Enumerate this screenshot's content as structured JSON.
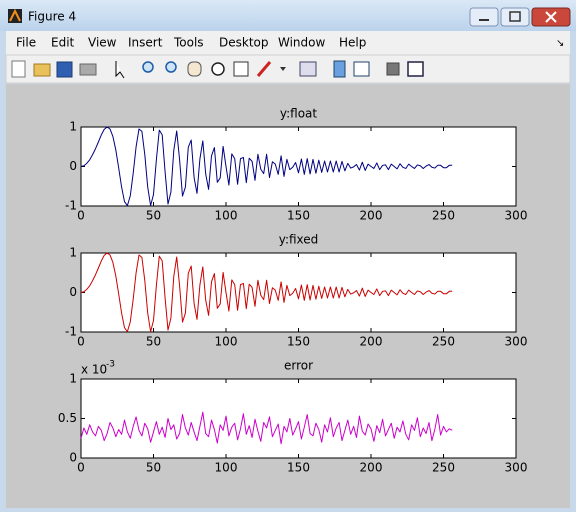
{
  "window": {
    "title": "Figure 4",
    "menu": [
      "File",
      "Edit",
      "View",
      "Insert",
      "Tools",
      "Desktop",
      "Window",
      "Help"
    ]
  },
  "chart_data": [
    {
      "type": "line",
      "title": "y:float",
      "color": "#000080",
      "x": [
        0,
        2,
        4,
        6,
        8,
        10,
        12,
        14,
        16,
        18,
        20,
        22,
        24,
        26,
        28,
        30,
        32,
        34,
        36,
        38,
        40,
        42,
        44,
        46,
        48,
        50,
        52,
        54,
        56,
        58,
        60,
        62,
        64,
        66,
        68,
        70,
        72,
        74,
        76,
        78,
        80,
        82,
        84,
        86,
        88,
        90,
        92,
        94,
        96,
        98,
        100,
        102,
        104,
        106,
        108,
        110,
        112,
        114,
        116,
        118,
        120,
        122,
        124,
        126,
        128,
        130,
        132,
        134,
        136,
        138,
        140,
        142,
        144,
        146,
        148,
        150,
        152,
        154,
        156,
        158,
        160,
        162,
        164,
        166,
        168,
        170,
        172,
        174,
        176,
        178,
        180,
        182,
        184,
        186,
        188,
        190,
        192,
        194,
        196,
        198,
        200,
        202,
        204,
        206,
        208,
        210,
        212,
        214,
        216,
        218,
        220,
        222,
        224,
        226,
        228,
        230,
        232,
        234,
        236,
        238,
        240,
        242,
        244,
        246,
        248,
        250,
        252,
        254,
        256
      ],
      "values": [
        0,
        0.02,
        0.08,
        0.17,
        0.3,
        0.45,
        0.62,
        0.8,
        0.94,
        1,
        0.95,
        0.76,
        0.42,
        -0.04,
        -0.52,
        -0.89,
        -0.99,
        -0.74,
        -0.17,
        0.5,
        0.95,
        0.89,
        0.3,
        -0.52,
        -0.99,
        -0.71,
        0.18,
        0.92,
        0.8,
        -0.14,
        -0.95,
        -0.65,
        0.41,
        0.9,
        0.17,
        -0.75,
        -0.52,
        0.49,
        0.67,
        -0.28,
        -0.68,
        0.19,
        0.65,
        -0.19,
        -0.58,
        0.27,
        0.48,
        -0.4,
        -0.29,
        0.51,
        0,
        -0.47,
        0.32,
        0.2,
        -0.45,
        0.2,
        0.23,
        -0.41,
        0.21,
        0.13,
        -0.35,
        0.31,
        -0.07,
        -0.18,
        0.31,
        -0.28,
        0.12,
        0.06,
        -0.2,
        0.27,
        -0.25,
        0.18,
        -0.08,
        -0.02,
        0.1,
        -0.16,
        0.19,
        -0.2,
        0.2,
        -0.19,
        0.18,
        -0.17,
        0.16,
        -0.15,
        0.14,
        -0.14,
        0.14,
        -0.14,
        0.14,
        -0.14,
        0.13,
        -0.11,
        0.08,
        -0.04,
        -0.01,
        0.05,
        -0.09,
        0.11,
        -0.1,
        0.06,
        0,
        -0.05,
        0.09,
        -0.08,
        0.03,
        0.04,
        -0.08,
        0.06,
        0,
        -0.06,
        0.07,
        -0.02,
        -0.05,
        0.06,
        0,
        -0.05,
        0.04,
        0.02,
        -0.05,
        0.01,
        0.05,
        -0.02,
        -0.04,
        0.03,
        0.03,
        -0.03,
        -0.03,
        0.03,
        0.03
      ],
      "xlim": [
        0,
        300
      ],
      "xticks": [
        0,
        50,
        100,
        150,
        200,
        250,
        300
      ],
      "ylim": [
        -1,
        1
      ],
      "yticks": [
        -1,
        0,
        1
      ]
    },
    {
      "type": "line",
      "title": "y:fixed",
      "color": "#cc0000",
      "x": [
        0,
        2,
        4,
        6,
        8,
        10,
        12,
        14,
        16,
        18,
        20,
        22,
        24,
        26,
        28,
        30,
        32,
        34,
        36,
        38,
        40,
        42,
        44,
        46,
        48,
        50,
        52,
        54,
        56,
        58,
        60,
        62,
        64,
        66,
        68,
        70,
        72,
        74,
        76,
        78,
        80,
        82,
        84,
        86,
        88,
        90,
        92,
        94,
        96,
        98,
        100,
        102,
        104,
        106,
        108,
        110,
        112,
        114,
        116,
        118,
        120,
        122,
        124,
        126,
        128,
        130,
        132,
        134,
        136,
        138,
        140,
        142,
        144,
        146,
        148,
        150,
        152,
        154,
        156,
        158,
        160,
        162,
        164,
        166,
        168,
        170,
        172,
        174,
        176,
        178,
        180,
        182,
        184,
        186,
        188,
        190,
        192,
        194,
        196,
        198,
        200,
        202,
        204,
        206,
        208,
        210,
        212,
        214,
        216,
        218,
        220,
        222,
        224,
        226,
        228,
        230,
        232,
        234,
        236,
        238,
        240,
        242,
        244,
        246,
        248,
        250,
        252,
        254,
        256
      ],
      "values": [
        0,
        0.02,
        0.08,
        0.17,
        0.3,
        0.45,
        0.62,
        0.8,
        0.94,
        1,
        0.95,
        0.76,
        0.42,
        -0.04,
        -0.52,
        -0.89,
        -0.99,
        -0.74,
        -0.17,
        0.5,
        0.95,
        0.89,
        0.3,
        -0.52,
        -0.99,
        -0.71,
        0.18,
        0.92,
        0.8,
        -0.14,
        -0.95,
        -0.65,
        0.41,
        0.9,
        0.17,
        -0.75,
        -0.52,
        0.49,
        0.67,
        -0.28,
        -0.68,
        0.19,
        0.65,
        -0.19,
        -0.58,
        0.27,
        0.48,
        -0.4,
        -0.29,
        0.51,
        0,
        -0.47,
        0.32,
        0.2,
        -0.45,
        0.2,
        0.23,
        -0.41,
        0.21,
        0.13,
        -0.35,
        0.31,
        -0.07,
        -0.18,
        0.31,
        -0.28,
        0.12,
        0.06,
        -0.2,
        0.27,
        -0.25,
        0.18,
        -0.08,
        -0.02,
        0.1,
        -0.16,
        0.19,
        -0.2,
        0.2,
        -0.19,
        0.18,
        -0.17,
        0.16,
        -0.15,
        0.14,
        -0.14,
        0.14,
        -0.14,
        0.14,
        -0.14,
        0.13,
        -0.11,
        0.08,
        -0.04,
        -0.01,
        0.05,
        -0.09,
        0.11,
        -0.1,
        0.06,
        0,
        -0.05,
        0.09,
        -0.08,
        0.03,
        0.04,
        -0.08,
        0.06,
        0,
        -0.06,
        0.07,
        -0.02,
        -0.05,
        0.06,
        0,
        -0.05,
        0.04,
        0.02,
        -0.05,
        0.01,
        0.05,
        -0.02,
        -0.04,
        0.03,
        0.03,
        -0.03,
        -0.03,
        0.03,
        0.03
      ],
      "xlim": [
        0,
        300
      ],
      "xticks": [
        0,
        50,
        100,
        150,
        200,
        250,
        300
      ],
      "ylim": [
        -1,
        1
      ],
      "yticks": [
        -1,
        0,
        1
      ]
    },
    {
      "type": "line",
      "title": "error",
      "color": "#cc00cc",
      "y_multiplier": "x 10",
      "y_multiplier_exponent": "-3",
      "x": [
        0,
        2,
        4,
        6,
        8,
        10,
        12,
        14,
        16,
        18,
        20,
        22,
        24,
        26,
        28,
        30,
        32,
        34,
        36,
        38,
        40,
        42,
        44,
        46,
        48,
        50,
        52,
        54,
        56,
        58,
        60,
        62,
        64,
        66,
        68,
        70,
        72,
        74,
        76,
        78,
        80,
        82,
        84,
        86,
        88,
        90,
        92,
        94,
        96,
        98,
        100,
        102,
        104,
        106,
        108,
        110,
        112,
        114,
        116,
        118,
        120,
        122,
        124,
        126,
        128,
        130,
        132,
        134,
        136,
        138,
        140,
        142,
        144,
        146,
        148,
        150,
        152,
        154,
        156,
        158,
        160,
        162,
        164,
        166,
        168,
        170,
        172,
        174,
        176,
        178,
        180,
        182,
        184,
        186,
        188,
        190,
        192,
        194,
        196,
        198,
        200,
        202,
        204,
        206,
        208,
        210,
        212,
        214,
        216,
        218,
        220,
        222,
        224,
        226,
        228,
        230,
        232,
        234,
        236,
        238,
        240,
        242,
        244,
        246,
        248,
        250,
        252,
        254,
        256
      ],
      "values": [
        0.25,
        0.38,
        0.3,
        0.42,
        0.33,
        0.28,
        0.4,
        0.35,
        0.22,
        0.31,
        0.45,
        0.38,
        0.27,
        0.36,
        0.3,
        0.48,
        0.33,
        0.25,
        0.4,
        0.52,
        0.35,
        0.28,
        0.44,
        0.37,
        0.2,
        0.33,
        0.46,
        0.3,
        0.39,
        0.26,
        0.5,
        0.36,
        0.42,
        0.24,
        0.31,
        0.55,
        0.38,
        0.29,
        0.45,
        0.33,
        0.22,
        0.4,
        0.58,
        0.31,
        0.27,
        0.48,
        0.36,
        0.19,
        0.42,
        0.35,
        0.53,
        0.28,
        0.39,
        0.44,
        0.23,
        0.37,
        0.56,
        0.3,
        0.41,
        0.26,
        0.49,
        0.34,
        0.21,
        0.45,
        0.38,
        0.52,
        0.27,
        0.35,
        0.43,
        0.18,
        0.4,
        0.33,
        0.5,
        0.29,
        0.37,
        0.46,
        0.24,
        0.39,
        0.55,
        0.31,
        0.28,
        0.44,
        0.36,
        0.2,
        0.42,
        0.33,
        0.51,
        0.27,
        0.38,
        0.45,
        0.22,
        0.35,
        0.48,
        0.3,
        0.4,
        0.26,
        0.53,
        0.34,
        0.29,
        0.43,
        0.37,
        0.21,
        0.41,
        0.32,
        0.49,
        0.28,
        0.36,
        0.44,
        0.25,
        0.39,
        0.33,
        0.47,
        0.3,
        0.23,
        0.42,
        0.35,
        0.51,
        0.27,
        0.38,
        0.31,
        0.45,
        0.22,
        0.36,
        0.55,
        0.29,
        0.4,
        0.33,
        0.37,
        0.35
      ],
      "xlim": [
        0,
        300
      ],
      "xticks": [
        0,
        50,
        100,
        150,
        200,
        250,
        300
      ],
      "ylim": [
        0,
        1
      ],
      "yticks": [
        0,
        0.5,
        1
      ]
    }
  ]
}
